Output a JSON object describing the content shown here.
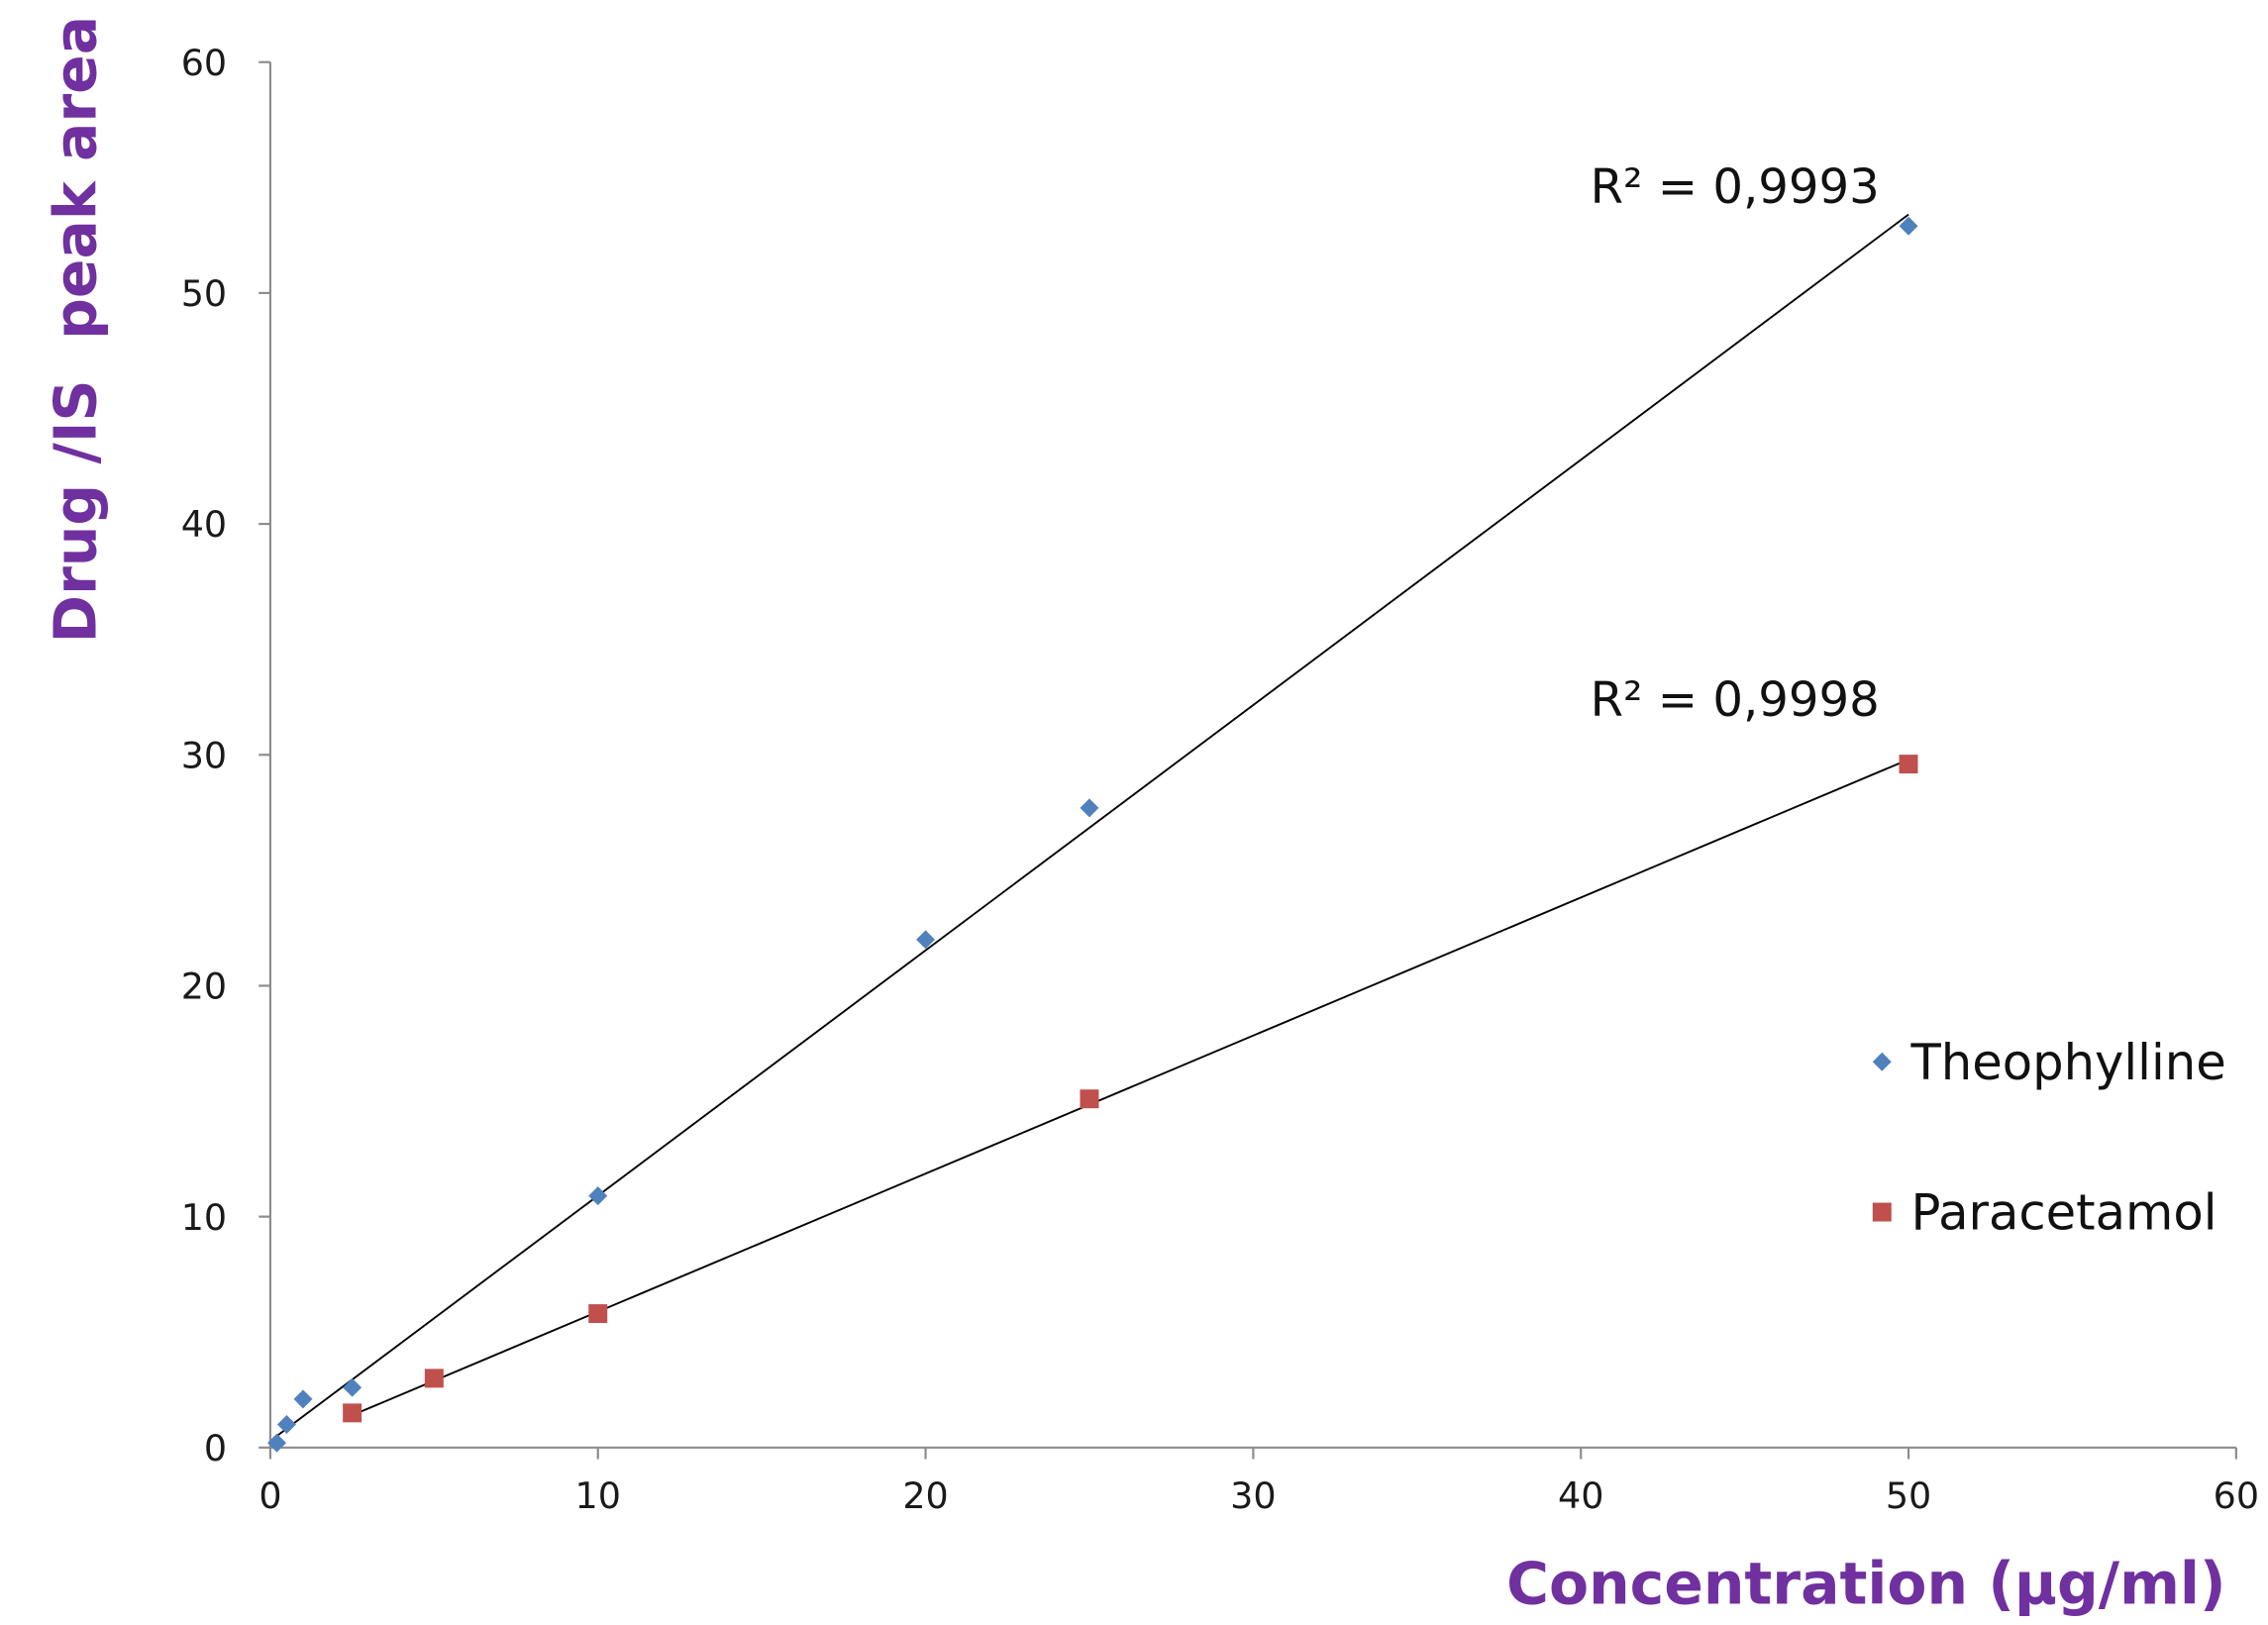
{
  "chart_data": {
    "type": "scatter",
    "xlabel": "Concentration (µg/ml)",
    "ylabel": "Drug /IS  peak area",
    "xlim": [
      0,
      60
    ],
    "ylim": [
      0,
      60
    ],
    "xticks": [
      "0",
      "10",
      "20",
      "30",
      "40",
      "50",
      "60"
    ],
    "yticks": [
      "0",
      "10",
      "20",
      "30",
      "40",
      "50",
      "60"
    ],
    "grid": false,
    "legend_position": "right",
    "axis_title_color": "#7030A0",
    "series": [
      {
        "name": "Theophylline",
        "marker": "diamond",
        "color": "#4F81BD",
        "x": [
          0.2,
          0.5,
          1,
          2.5,
          10,
          20,
          25,
          50
        ],
        "y": [
          0.2,
          1.0,
          2.1,
          2.6,
          10.9,
          22.0,
          27.7,
          52.9
        ],
        "trendline": {
          "type": "linear",
          "x_range": [
            0.2,
            50
          ],
          "y_range": [
            0.5,
            53.4
          ],
          "label": "R² = 0,9993"
        }
      },
      {
        "name": "Paracetamol",
        "marker": "square",
        "color": "#C0504D",
        "x": [
          2.5,
          5,
          10,
          25,
          50
        ],
        "y": [
          1.5,
          3.0,
          5.8,
          15.1,
          29.6
        ],
        "trendline": {
          "type": "linear",
          "x_range": [
            2.5,
            50
          ],
          "y_range": [
            1.4,
            29.8
          ],
          "label": "R² = 0,9998"
        }
      }
    ]
  }
}
